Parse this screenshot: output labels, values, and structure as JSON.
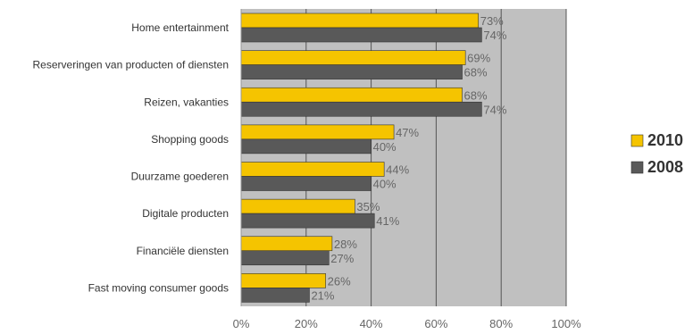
{
  "chart_data": {
    "type": "bar",
    "orientation": "horizontal",
    "categories": [
      "Home entertainment",
      "Reserveringen van producten of diensten",
      "Reizen, vakanties",
      "Shopping goods",
      "Duurzame goederen",
      "Digitale producten",
      "Financiële diensten",
      "Fast moving consumer goods"
    ],
    "series": [
      {
        "name": "2010",
        "color": "#f5c400",
        "values": [
          73,
          69,
          68,
          47,
          44,
          35,
          28,
          26
        ]
      },
      {
        "name": "2008",
        "color": "#595959",
        "values": [
          74,
          68,
          74,
          40,
          40,
          41,
          27,
          21
        ]
      }
    ],
    "xlim": [
      0,
      100
    ],
    "xticks": [
      "0%",
      "20%",
      "40%",
      "60%",
      "80%",
      "100%"
    ],
    "data_label_suffix": "%",
    "grid": true,
    "plot_background": "#c0c0c0",
    "legend_position": "right"
  }
}
